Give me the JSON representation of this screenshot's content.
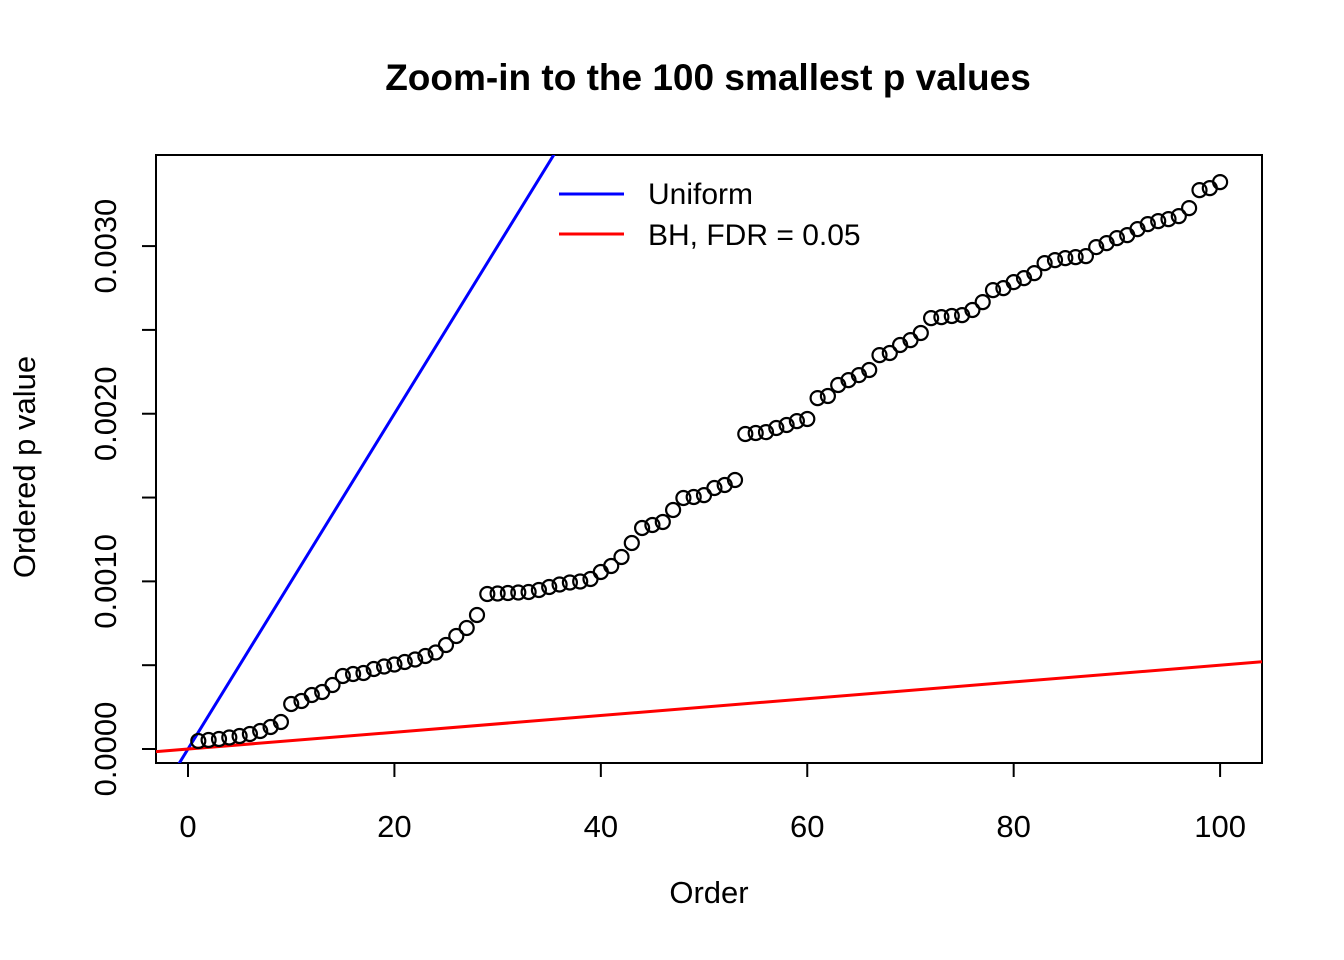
{
  "figure": {
    "background_color": "#ffffff",
    "foreground_color": "#000000",
    "marker_style": "open-circle"
  },
  "chart_data": {
    "type": "scatter",
    "title": "Zoom-in to the 100 smallest p values",
    "xlabel": "Order",
    "ylabel": "Ordered p value",
    "xlim": [
      -3.1,
      104.06
    ],
    "ylim": [
      -8.35e-05,
      0.0035434
    ],
    "grid": false,
    "x_ticks": [
      0,
      20,
      40,
      60,
      80,
      100
    ],
    "x_tick_labels": [
      "0",
      "20",
      "40",
      "60",
      "80",
      "100"
    ],
    "y_ticks": [
      0.0,
      0.0005,
      0.001,
      0.0015,
      0.002,
      0.0025,
      0.003
    ],
    "y_tick_labels": [
      "0.0000",
      "",
      "0.0010",
      "",
      "0.0020",
      "",
      "0.0030"
    ],
    "legend": {
      "position": "top-center-inside",
      "box": false
    },
    "lines": [
      {
        "label": "Uniform",
        "color": "#0000ff",
        "slope_per_order": 0.0001,
        "intercept": 0,
        "equation": "p = order / 10000"
      },
      {
        "label": "BH, FDR = 0.05",
        "color": "#ff0000",
        "slope_per_order": 5e-06,
        "intercept": 0,
        "equation": "p = 0.05 * order / 10000"
      }
    ],
    "points": {
      "label": "ordered p values",
      "color": "#000000",
      "x": [
        1,
        2,
        3,
        4,
        5,
        6,
        7,
        8,
        9,
        10,
        11,
        12,
        13,
        14,
        15,
        16,
        17,
        18,
        19,
        20,
        21,
        22,
        23,
        24,
        25,
        26,
        27,
        28,
        29,
        30,
        31,
        32,
        33,
        34,
        35,
        36,
        37,
        38,
        39,
        40,
        41,
        42,
        43,
        44,
        45,
        46,
        47,
        48,
        49,
        50,
        51,
        52,
        53,
        54,
        55,
        56,
        57,
        58,
        59,
        60,
        61,
        62,
        63,
        64,
        65,
        66,
        67,
        68,
        69,
        70,
        71,
        72,
        73,
        74,
        75,
        76,
        77,
        78,
        79,
        80,
        81,
        82,
        83,
        84,
        85,
        86,
        87,
        88,
        89,
        90,
        91,
        92,
        93,
        94,
        95,
        96,
        97,
        98,
        99,
        100
      ],
      "y": [
        4.77e-05,
        5.37e-05,
        5.96e-05,
        6.86e-05,
        7.75e-05,
        8.95e-05,
        0.0001074,
        0.0001312,
        0.000161,
        0.0002684,
        0.0002863,
        0.0003221,
        0.00034,
        0.0003817,
        0.0004354,
        0.0004473,
        0.0004533,
        0.0004771,
        0.0004921,
        0.000504,
        0.0005189,
        0.0005338,
        0.0005547,
        0.0005756,
        0.0006203,
        0.000674,
        0.0007217,
        0.0007992,
        0.0009245,
        0.0009274,
        0.0009304,
        0.0009334,
        0.0009364,
        0.0009483,
        0.0009662,
        0.0009811,
        0.000993,
        0.000999,
        0.0010139,
        0.0010557,
        0.0010915,
        0.0011451,
        0.0012286,
        0.0013181,
        0.001336,
        0.0013539,
        0.0014255,
        0.0014971,
        0.001503,
        0.0015149,
        0.0015567,
        0.0015746,
        0.0016044,
        0.0018788,
        0.0018848,
        0.0018907,
        0.0019146,
        0.0019325,
        0.0019563,
        0.0019683,
        0.0020935,
        0.0021055,
        0.0021711,
        0.0022009,
        0.0022307,
        0.0022606,
        0.00235,
        0.002362,
        0.0024097,
        0.0024395,
        0.0024813,
        0.0025707,
        0.0025767,
        0.0025827,
        0.0025886,
        0.0026185,
        0.0026662,
        0.0027377,
        0.0027497,
        0.0027854,
        0.0028093,
        0.0028391,
        0.0028988,
        0.0029167,
        0.0029286,
        0.0029346,
        0.0029405,
        0.0029942,
        0.0030181,
        0.0030479,
        0.0030658,
        0.0031016,
        0.0031314,
        0.0031493,
        0.0031612,
        0.0031791,
        0.0032268,
        0.0033342,
        0.0033461,
        0.0033819
      ]
    }
  }
}
